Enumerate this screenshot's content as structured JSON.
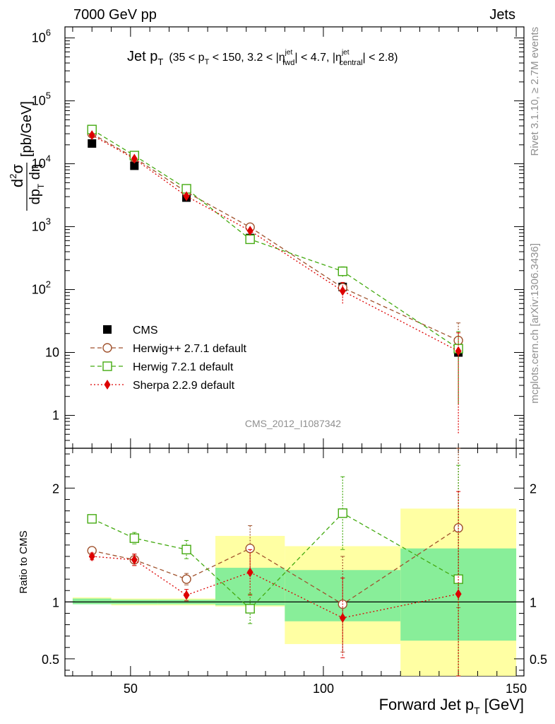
{
  "header": {
    "left": "7000 GeV pp",
    "right": "Jets",
    "side_rivet": "Rivet 3.1.10, ≥ 2.7M events",
    "side_mcplots": "mcplots.cern.ch [arXiv:1306.3436]",
    "analysis": "CMS_2012_I1087342"
  },
  "plot_title": {
    "main": "Jet p",
    "main_sub": "T",
    "range_open": "(35 < p",
    "range_sub1": "T",
    "range_mid": " < 150, 3.2 < |η",
    "fwd_sup": "jet",
    "fwd_sub": "fwd",
    "range_mid2": "| < 4.7, |η",
    "cen_sup": "jet",
    "cen_sub": "central",
    "range_close": "| < 2.8)"
  },
  "ylabel_main": {
    "num_d": "d",
    "num_sup": "2",
    "num_sigma": "σ",
    "den_d": "dp",
    "den_sub": "T",
    "den_eta": " dη",
    "unit": "[pb/GeV]"
  },
  "ylabel_ratio": "Ratio to CMS",
  "xlabel": {
    "text": "Forward Jet p",
    "sub": "T",
    "unit": " [GeV]"
  },
  "legend": [
    {
      "label": "CMS",
      "color": "#000000",
      "marker": "square-filled"
    },
    {
      "label": "Herwig++ 2.7.1 default",
      "color": "#a0522d",
      "marker": "circle-open"
    },
    {
      "label": "Herwig 7.2.1 default",
      "color": "#44aa11",
      "marker": "square-open"
    },
    {
      "label": "Sherpa 2.2.9 default",
      "color": "#dd0000",
      "marker": "diamond-filled"
    }
  ],
  "chart_data": {
    "type": "scatter",
    "x_axis": {
      "range": [
        33,
        152
      ],
      "ticks": [
        50,
        100,
        150
      ],
      "tick_labels": [
        "50",
        "100",
        "150"
      ]
    },
    "main_axis": {
      "scale": "log",
      "range": [
        0.3,
        1500000
      ],
      "tick_labels": [
        "1",
        "10",
        "10^2",
        "10^3",
        "10^4",
        "10^5",
        "10^6"
      ]
    },
    "ratio_axis": {
      "range": [
        0.35,
        2.35
      ],
      "ticks": [
        0.5,
        1,
        2
      ],
      "tick_labels": [
        "0.5",
        "1",
        "2"
      ]
    },
    "bins": [
      {
        "lo": 35,
        "hi": 45,
        "center": 40
      },
      {
        "lo": 45,
        "hi": 57,
        "center": 51
      },
      {
        "lo": 57,
        "hi": 72,
        "center": 64.5
      },
      {
        "lo": 72,
        "hi": 90,
        "center": 81
      },
      {
        "lo": 90,
        "hi": 120,
        "center": 105
      },
      {
        "lo": 120,
        "hi": 150,
        "center": 135
      }
    ],
    "cms": {
      "name": "CMS",
      "x": [
        40,
        51,
        64.5,
        81,
        105,
        135
      ],
      "y": [
        21000,
        9300,
        2900,
        660,
        110,
        10
      ],
      "ratio_band_inner": [
        [
          0.98,
          1.03
        ],
        [
          0.98,
          1.02
        ],
        [
          0.98,
          1.02
        ],
        [
          0.97,
          1.3
        ],
        [
          0.83,
          1.28
        ],
        [
          0.66,
          1.47
        ]
      ],
      "ratio_band_outer": [
        [
          0.98,
          1.04
        ],
        [
          0.97,
          1.03
        ],
        [
          0.97,
          1.03
        ],
        [
          0.96,
          1.58
        ],
        [
          0.63,
          1.49
        ],
        [
          0.35,
          1.82
        ]
      ]
    },
    "series": [
      {
        "name": "Herwig++ 2.7.1 default",
        "x": [
          40,
          51,
          64.5,
          81,
          105,
          135
        ],
        "y": [
          30000,
          12500,
          3550,
          980,
          107,
          15.5
        ],
        "y_err": [
          0,
          0,
          0,
          0,
          0,
          14
        ],
        "ratio": [
          1.45,
          1.37,
          1.2,
          1.47,
          0.98,
          1.65
        ],
        "ratio_err": [
          0.03,
          0.05,
          0.05,
          0.2,
          0.42,
          0.7
        ]
      },
      {
        "name": "Herwig 7.2.1 default",
        "x": [
          40,
          51,
          64.5,
          81,
          105,
          135
        ],
        "y": [
          35000,
          13500,
          4000,
          630,
          195,
          11.5
        ],
        "y_err": [
          0,
          0,
          0,
          60,
          35,
          10
        ],
        "ratio": [
          1.73,
          1.56,
          1.46,
          0.94,
          1.78,
          1.2
        ],
        "ratio_err": [
          0.03,
          0.05,
          0.08,
          0.13,
          0.32,
          1.0
        ]
      },
      {
        "name": "Sherpa 2.2.9 default",
        "x": [
          40,
          51,
          64.5,
          81,
          105,
          135
        ],
        "y": [
          28500,
          12000,
          3050,
          860,
          95,
          10.5
        ],
        "y_err": [
          0,
          0,
          0,
          0,
          35,
          10
        ],
        "ratio": [
          1.4,
          1.37,
          1.06,
          1.26,
          0.86,
          1.07
        ],
        "ratio_err": [
          0.03,
          0.05,
          0.05,
          0.2,
          0.35,
          0.9
        ]
      }
    ]
  }
}
